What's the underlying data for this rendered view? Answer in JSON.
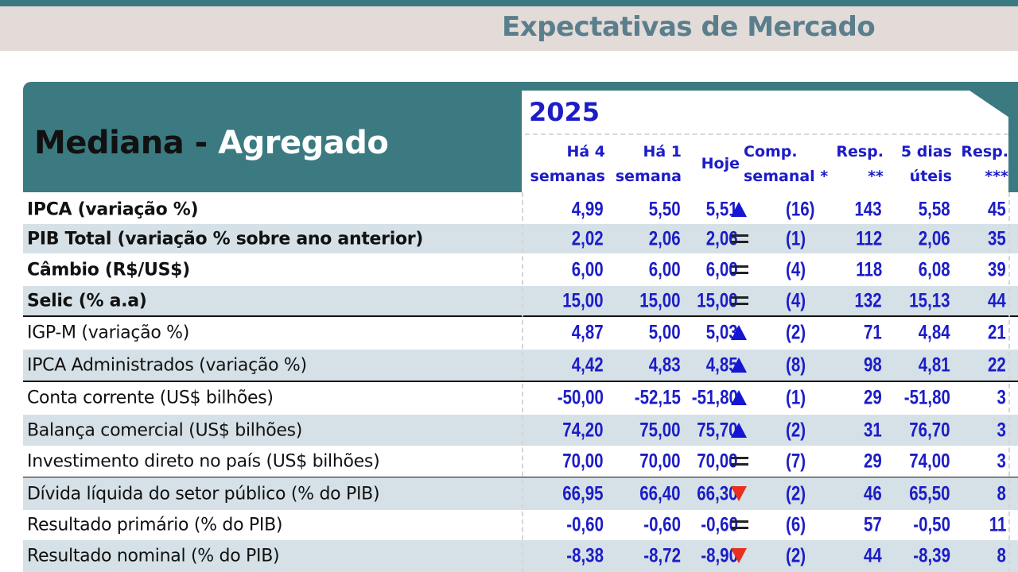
{
  "page_title": "Expectativas de Mercado",
  "header": {
    "title_dark": "Mediana - ",
    "title_light": "Agregado",
    "year": "2025"
  },
  "columns": [
    {
      "l1": "Há 4",
      "l2": "semanas"
    },
    {
      "l1": "Há 1",
      "l2": "semana"
    },
    {
      "l1": "",
      "l2": "Hoje"
    },
    {
      "l1": "Comp.",
      "l2": "semanal *"
    },
    {
      "l1": "Resp.",
      "l2": "**"
    },
    {
      "l1": "5 dias",
      "l2": "úteis"
    },
    {
      "l1": "Resp.",
      "l2": "***"
    }
  ],
  "rows": [
    {
      "label": "IPCA (variação %)",
      "bold": true,
      "h4": "4,99",
      "h1": "5,50",
      "hoje": "5,51",
      "trend": "up",
      "comp": "(16)",
      "resp": "143",
      "d5": "5,58",
      "resp5": "45"
    },
    {
      "label": "PIB Total (variação % sobre ano anterior)",
      "bold": true,
      "h4": "2,02",
      "h1": "2,06",
      "hoje": "2,06",
      "trend": "eq",
      "comp": "(1)",
      "resp": "112",
      "d5": "2,06",
      "resp5": "35"
    },
    {
      "label": "Câmbio (R$/US$)",
      "bold": true,
      "h4": "6,00",
      "h1": "6,00",
      "hoje": "6,00",
      "trend": "eq",
      "comp": "(4)",
      "resp": "118",
      "d5": "6,08",
      "resp5": "39"
    },
    {
      "label": "Selic (% a.a)",
      "bold": true,
      "h4": "15,00",
      "h1": "15,00",
      "hoje": "15,00",
      "trend": "eq",
      "comp": "(4)",
      "resp": "132",
      "d5": "15,13",
      "resp5": "44"
    },
    {
      "label": "IGP-M (variação %)",
      "bold": false,
      "h4": "4,87",
      "h1": "5,00",
      "hoje": "5,03",
      "trend": "up",
      "comp": "(2)",
      "resp": "71",
      "d5": "4,84",
      "resp5": "21"
    },
    {
      "label": "IPCA Administrados (variação %)",
      "bold": false,
      "h4": "4,42",
      "h1": "4,83",
      "hoje": "4,85",
      "trend": "up",
      "comp": "(8)",
      "resp": "98",
      "d5": "4,81",
      "resp5": "22"
    },
    {
      "label": "Conta corrente (US$ bilhões)",
      "bold": false,
      "h4": "-50,00",
      "h1": "-52,15",
      "hoje": "-51,80",
      "trend": "up",
      "comp": "(1)",
      "resp": "29",
      "d5": "-51,80",
      "resp5": "3"
    },
    {
      "label": "Balança comercial (US$ bilhões)",
      "bold": false,
      "h4": "74,20",
      "h1": "75,00",
      "hoje": "75,70",
      "trend": "up",
      "comp": "(2)",
      "resp": "31",
      "d5": "76,70",
      "resp5": "3"
    },
    {
      "label": "Investimento direto no país (US$ bilhões)",
      "bold": false,
      "h4": "70,00",
      "h1": "70,00",
      "hoje": "70,00",
      "trend": "eq",
      "comp": "(7)",
      "resp": "29",
      "d5": "74,00",
      "resp5": "3"
    },
    {
      "label": "Dívida líquida do setor público (% do PIB)",
      "bold": false,
      "h4": "66,95",
      "h1": "66,40",
      "hoje": "66,30",
      "trend": "down",
      "comp": "(2)",
      "resp": "46",
      "d5": "65,50",
      "resp5": "8"
    },
    {
      "label": "Resultado primário (% do PIB)",
      "bold": false,
      "h4": "-0,60",
      "h1": "-0,60",
      "hoje": "-0,60",
      "trend": "eq",
      "comp": "(6)",
      "resp": "57",
      "d5": "-0,50",
      "resp5": "11"
    },
    {
      "label": "Resultado nominal (% do PIB)",
      "bold": false,
      "h4": "-8,38",
      "h1": "-8,72",
      "hoje": "-8,90",
      "trend": "down",
      "comp": "(2)",
      "resp": "44",
      "d5": "-8,39",
      "resp5": "8"
    }
  ],
  "colors": {
    "teal": "#3b7a80",
    "blue": "#1c1cc8",
    "shade": "#d5e1e6",
    "up": "#1515d4",
    "down": "#e8301f"
  }
}
